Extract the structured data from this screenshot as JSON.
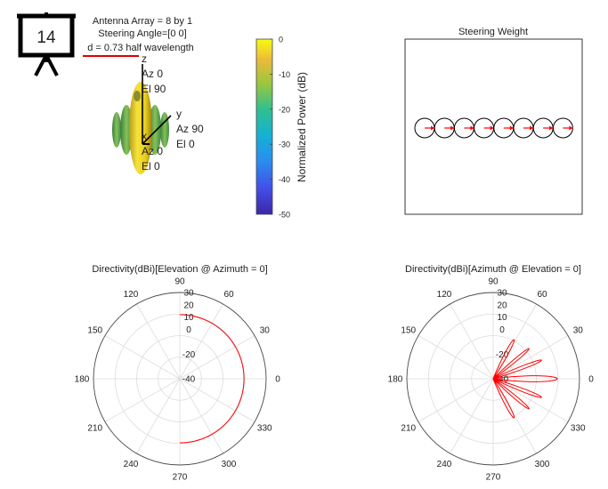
{
  "header": {
    "slide_number": "14",
    "lines": [
      "Antenna Array = 8 by 1",
      "Steering Angle=[0 0]",
      "d = 0.73 half wavelength"
    ]
  },
  "pattern3d": {
    "axes": {
      "z": {
        "name": "z",
        "az": "Az 0",
        "el": "El 90"
      },
      "y": {
        "name": "y",
        "az": "Az 90",
        "el": "El 0"
      },
      "x": {
        "name": "x",
        "az": "Az 0",
        "el": "El 0"
      }
    },
    "colorbar": {
      "label": "Normalized Power (dB)",
      "ticks": [
        "0",
        "-10",
        "-20",
        "-30",
        "-40",
        "-50"
      ],
      "range": [
        -50,
        0
      ]
    }
  },
  "steering": {
    "title": "Steering Weight",
    "elements": 8,
    "phasors_deg": [
      0,
      0,
      0,
      0,
      0,
      0,
      0,
      0
    ],
    "colors": {
      "circle": "#000000",
      "arrow": "#ff0000"
    }
  },
  "chart_data": [
    {
      "type": "polar",
      "title": "Directivity(dBi)[Elevation @ Azimuth = 0]",
      "angle_ticks": [
        "90",
        "60",
        "30",
        "0",
        "330",
        "300",
        "270",
        "240",
        "210",
        "180",
        "150",
        "120"
      ],
      "radial_ticks": [
        "30",
        "20",
        "10",
        "0",
        "-20",
        "-40"
      ],
      "rlim": [
        -40,
        30
      ],
      "series": [
        {
          "color": "#ff0000",
          "angles_deg": [
            -90,
            -60,
            -30,
            0,
            30,
            60,
            90
          ],
          "values": [
            12,
            12,
            12,
            12,
            12,
            12,
            12
          ]
        }
      ]
    },
    {
      "type": "polar",
      "title": "Directivity(dBi)[Azimuth @ Elevation = 0]",
      "angle_ticks": [
        "90",
        "60",
        "30",
        "0",
        "330",
        "300",
        "270",
        "240",
        "210",
        "180",
        "150",
        "120"
      ],
      "radial_ticks": [
        "30",
        "20",
        "10",
        "0",
        "-20",
        "-40"
      ],
      "rlim": [
        -40,
        30
      ],
      "series": [
        {
          "color": "#ff0000",
          "lobes": [
            {
              "center_deg": 0,
              "peak": 12,
              "width_deg": 15
            },
            {
              "center_deg": 21,
              "peak": 2,
              "width_deg": 10
            },
            {
              "center_deg": -21,
              "peak": 2,
              "width_deg": 10
            },
            {
              "center_deg": 40,
              "peak": -2,
              "width_deg": 10
            },
            {
              "center_deg": -40,
              "peak": -2,
              "width_deg": 10
            },
            {
              "center_deg": 62,
              "peak": -4,
              "width_deg": 12
            },
            {
              "center_deg": -62,
              "peak": -4,
              "width_deg": 12
            }
          ],
          "floor": -40,
          "range_deg": [
            -90,
            90
          ]
        }
      ]
    }
  ]
}
